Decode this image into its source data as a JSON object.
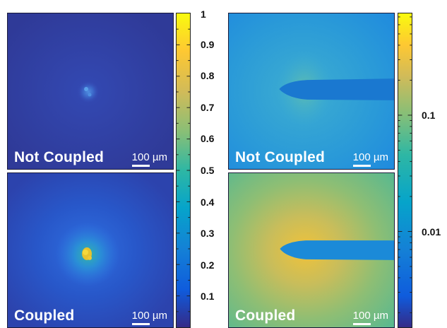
{
  "panels": {
    "top_left": {
      "label": "Not Coupled",
      "scale": "100 µm"
    },
    "bottom_left": {
      "label": "Coupled",
      "scale": "100 µm"
    },
    "top_right": {
      "label": "Not Coupled",
      "scale": "100 µm"
    },
    "bottom_right": {
      "label": "Coupled",
      "scale": "100 µm"
    }
  },
  "colorbar_linear": {
    "ticks": [
      {
        "value": 1,
        "label": "1"
      },
      {
        "value": 0.9,
        "label": "0.9"
      },
      {
        "value": 0.8,
        "label": "0.8"
      },
      {
        "value": 0.7,
        "label": "0.7"
      },
      {
        "value": 0.6,
        "label": "0.6"
      },
      {
        "value": 0.5,
        "label": "0.5"
      },
      {
        "value": 0.4,
        "label": "0.4"
      },
      {
        "value": 0.3,
        "label": "0.3"
      },
      {
        "value": 0.2,
        "label": "0.2"
      },
      {
        "value": 0.1,
        "label": "0.1"
      }
    ]
  },
  "colorbar_log": {
    "scale": "log",
    "ticks": [
      {
        "value": 0.1,
        "label": "0.1"
      },
      {
        "value": 0.01,
        "label": "0.01"
      }
    ]
  },
  "colors": {
    "map_low": "#352a87",
    "map_mid": "#1fb5b0",
    "map_high": "#f9fb0e"
  }
}
